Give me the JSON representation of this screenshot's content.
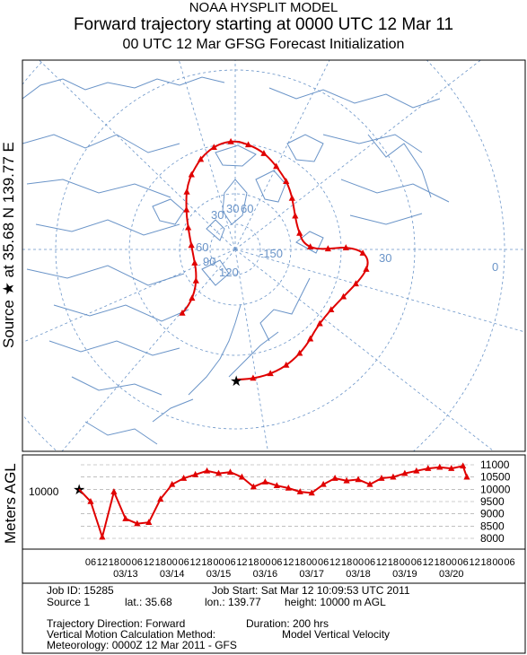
{
  "header": {
    "model": "NOAA HYSPLIT MODEL",
    "title": "Forward trajectory starting at 0000 UTC 12 Mar 11",
    "subtitle": "00 UTC 12 Mar    GFSG  Forecast Initialization"
  },
  "side_label": {
    "source": "Source",
    "star": "★",
    "at": "at",
    "coords": "35.68 N  139.77 E"
  },
  "map": {
    "lat_ring_labels": [
      "30",
      "30",
      "60",
      "60",
      "90"
    ],
    "lon_labels": [
      "-150",
      "120",
      "30",
      "0"
    ],
    "colors": {
      "coast": "#6a94c8",
      "grid": "#6a94c8",
      "trajectory": "#e00000",
      "border": "#000000"
    }
  },
  "height_panel": {
    "axis_label": "Meters AGL",
    "source_height_label": "10000",
    "right_ticks": [
      "11000",
      "10500",
      "10000",
      "9500",
      "9000",
      "8500",
      "8000"
    ],
    "hour_ticks": [
      "06",
      "12",
      "18",
      "00",
      "06",
      "12",
      "18",
      "00",
      "06",
      "12",
      "18",
      "00",
      "06",
      "12",
      "18",
      "00",
      "06",
      "12",
      "18",
      "00",
      "06",
      "12",
      "18",
      "00",
      "06",
      "12",
      "18",
      "00",
      "06",
      "12",
      "18",
      "00",
      "06",
      "12",
      "18",
      "00",
      "06"
    ],
    "date_labels": [
      "03/13",
      "03/14",
      "03/15",
      "03/16",
      "03/17",
      "03/18",
      "03/19",
      "03/20"
    ]
  },
  "chart_data": {
    "type": "line",
    "ylabel": "Meters AGL",
    "ylim": [
      8000,
      11000
    ],
    "x_hours": [
      0,
      6,
      12,
      18,
      24,
      30,
      36,
      42,
      48,
      54,
      60,
      66,
      72,
      78,
      84,
      90,
      96,
      102,
      108,
      114,
      120,
      126,
      132,
      138,
      144,
      150,
      156,
      162,
      168,
      174,
      180,
      186,
      192,
      198,
      200
    ],
    "series": [
      {
        "values": [
          10000,
          9500,
          8050,
          9900,
          8800,
          8600,
          8650,
          9600,
          10200,
          10450,
          10600,
          10750,
          10650,
          10700,
          10500,
          10100,
          10300,
          10150,
          10050,
          9900,
          9850,
          10200,
          10450,
          10350,
          10400,
          10200,
          10450,
          10500,
          10650,
          10750,
          10850,
          10900,
          10850,
          10950,
          10500
        ]
      }
    ]
  },
  "info": {
    "job_id": "Job ID: 15285",
    "job_start": "Job Start: Sat Mar 12 10:09:53 UTC 2011",
    "source": "Source 1",
    "lat": "lat.: 35.68",
    "lon": "lon.: 139.77",
    "height": "height: 10000 m AGL",
    "direction": "Trajectory Direction: Forward",
    "duration": "Duration: 200 hrs",
    "vertical": "Vertical Motion Calculation Method:",
    "vertical_value": "Model Vertical Velocity",
    "meteorology": "Meteorology: 0000Z 12 Mar 2011 - GFS"
  }
}
